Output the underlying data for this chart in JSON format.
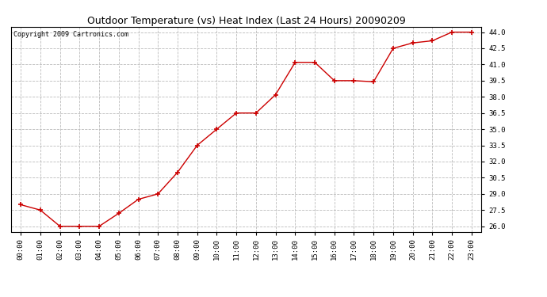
{
  "title": "Outdoor Temperature (vs) Heat Index (Last 24 Hours) 20090209",
  "copyright": "Copyright 2009 Cartronics.com",
  "x_labels": [
    "00:00",
    "01:00",
    "02:00",
    "03:00",
    "04:00",
    "05:00",
    "06:00",
    "07:00",
    "08:00",
    "09:00",
    "10:00",
    "11:00",
    "12:00",
    "13:00",
    "14:00",
    "15:00",
    "16:00",
    "17:00",
    "18:00",
    "19:00",
    "20:00",
    "21:00",
    "22:00",
    "23:00"
  ],
  "y_values": [
    28.0,
    27.5,
    26.0,
    26.0,
    26.0,
    27.2,
    28.5,
    29.0,
    31.0,
    33.5,
    35.0,
    36.5,
    36.5,
    38.2,
    41.2,
    41.2,
    39.5,
    39.5,
    39.4,
    42.5,
    43.0,
    43.2,
    44.0,
    44.0
  ],
  "ylim": [
    25.5,
    44.5
  ],
  "yticks": [
    26.0,
    27.5,
    29.0,
    30.5,
    32.0,
    33.5,
    35.0,
    36.5,
    38.0,
    39.5,
    41.0,
    42.5,
    44.0
  ],
  "line_color": "#cc0000",
  "marker": "+",
  "marker_color": "#cc0000",
  "background_color": "#ffffff",
  "grid_color": "#bbbbbb",
  "title_fontsize": 9,
  "copyright_fontsize": 6,
  "tick_fontsize": 6.5
}
